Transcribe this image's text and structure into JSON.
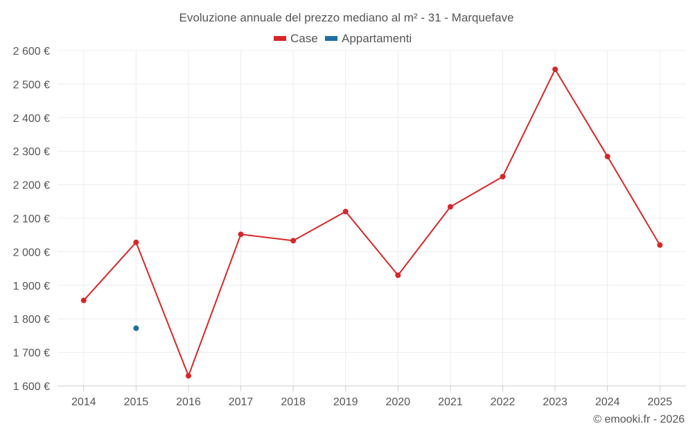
{
  "chart_data": {
    "type": "line",
    "title": "Evoluzione annuale del prezzo mediano al m² - 31 - Marquefave",
    "categories": [
      "2014",
      "2015",
      "2016",
      "2017",
      "2018",
      "2019",
      "2020",
      "2021",
      "2022",
      "2023",
      "2024",
      "2025"
    ],
    "series": [
      {
        "name": "Case",
        "color": "#d62728",
        "values": [
          1855,
          2028,
          1630,
          2052,
          2033,
          2120,
          1930,
          2134,
          2224,
          2544,
          2284,
          2020
        ]
      },
      {
        "name": "Appartamenti",
        "color": "#1f6fa5",
        "values": [
          null,
          1772,
          null,
          null,
          null,
          null,
          null,
          null,
          null,
          null,
          null,
          null
        ]
      }
    ],
    "ylim": [
      1600,
      2600
    ],
    "yticks": [
      1600,
      1700,
      1800,
      1900,
      2000,
      2100,
      2200,
      2300,
      2400,
      2500,
      2600
    ],
    "ytick_labels": [
      "1 600 €",
      "1 700 €",
      "1 800 €",
      "1 900 €",
      "2 000 €",
      "2 100 €",
      "2 200 €",
      "2 300 €",
      "2 400 €",
      "2 500 €",
      "2 600 €"
    ],
    "xlabel": "",
    "ylabel": "",
    "grid": true,
    "legend_position": "top-center"
  },
  "credit": "© emooki.fr - 2026"
}
